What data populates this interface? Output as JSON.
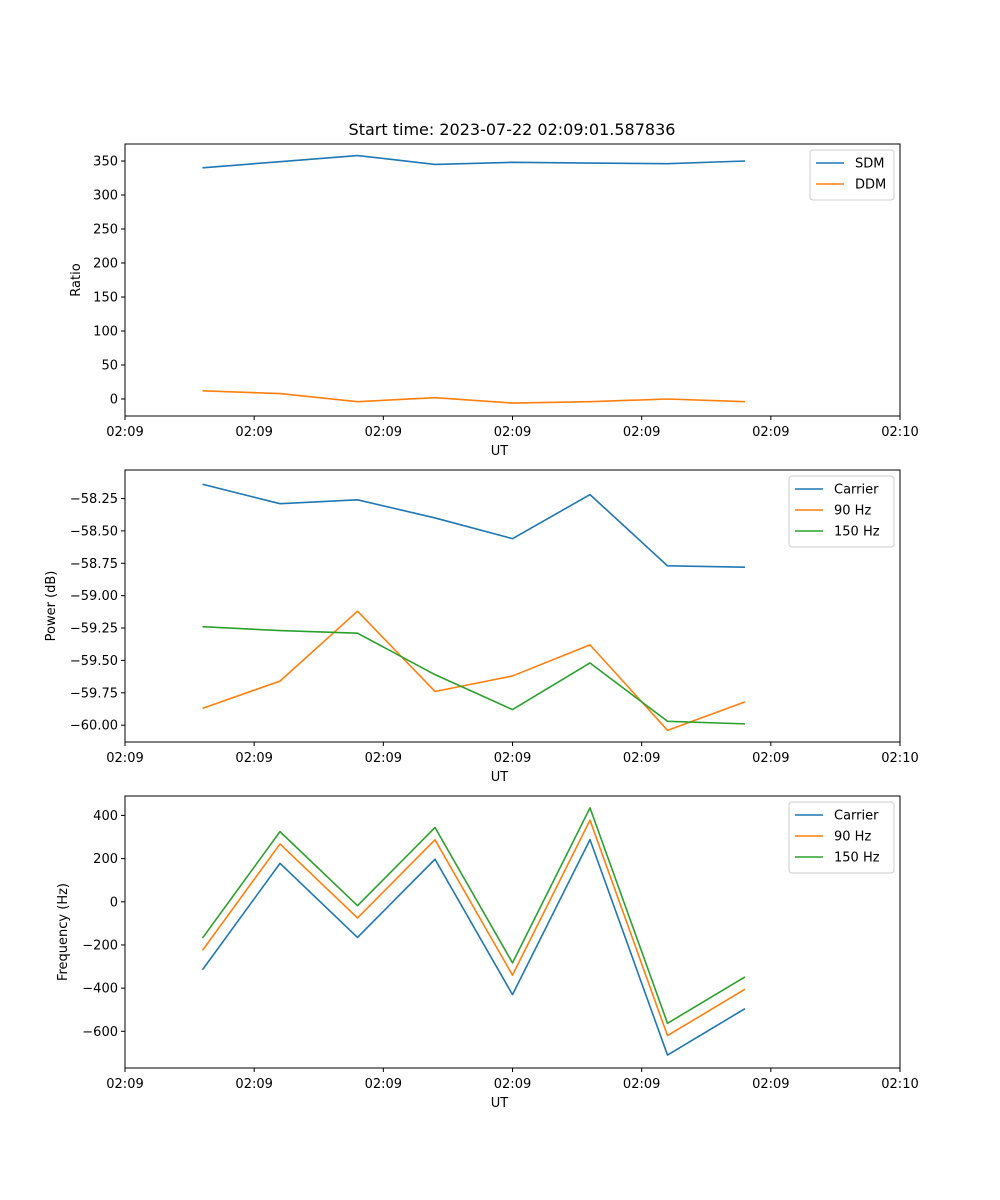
{
  "figure": {
    "title": "Start time: 2023-07-22 02:09:01.587836"
  },
  "colors": {
    "blue": "#1f77b4",
    "orange": "#ff7f0e",
    "green": "#2ca02c"
  },
  "chart_data": [
    {
      "type": "line",
      "title": "Start time: 2023-07-22 02:09:01.587836",
      "xlabel": "UT",
      "ylabel": "Ratio",
      "x": [
        0.6,
        1.2,
        1.8,
        2.4,
        3.0,
        3.6,
        4.2,
        4.8
      ],
      "xlim": [
        0,
        6
      ],
      "xticks": [
        0,
        1,
        2,
        3,
        4,
        5,
        6
      ],
      "xtick_labels": [
        "02:09",
        "02:09",
        "02:09",
        "02:09",
        "02:09",
        "02:09",
        "02:10"
      ],
      "ylim": [
        -25,
        375
      ],
      "yticks": [
        0,
        50,
        100,
        150,
        200,
        250,
        300,
        350
      ],
      "ytick_labels": [
        "0",
        "50",
        "100",
        "150",
        "200",
        "250",
        "300",
        "350"
      ],
      "legend_position": "top-right",
      "series": [
        {
          "name": "SDM",
          "color": "#1f77b4",
          "values": [
            340,
            349,
            358,
            345,
            348,
            347,
            346,
            350
          ]
        },
        {
          "name": "DDM",
          "color": "#ff7f0e",
          "values": [
            12,
            8,
            -4,
            2,
            -6,
            -4,
            0,
            -4
          ]
        }
      ]
    },
    {
      "type": "line",
      "title": "",
      "xlabel": "UT",
      "ylabel": "Power (dB)",
      "x": [
        0.6,
        1.2,
        1.8,
        2.4,
        3.0,
        3.6,
        4.2,
        4.8
      ],
      "xlim": [
        0,
        6
      ],
      "xticks": [
        0,
        1,
        2,
        3,
        4,
        5,
        6
      ],
      "xtick_labels": [
        "02:09",
        "02:09",
        "02:09",
        "02:09",
        "02:09",
        "02:09",
        "02:10"
      ],
      "ylim": [
        -60.13,
        -58.03
      ],
      "yticks": [
        -60.0,
        -59.75,
        -59.5,
        -59.25,
        -59.0,
        -58.75,
        -58.5,
        -58.25
      ],
      "ytick_labels": [
        "−60.00",
        "−59.75",
        "−59.50",
        "−59.25",
        "−59.00",
        "−58.75",
        "−58.50",
        "−58.25"
      ],
      "legend_position": "top-right",
      "series": [
        {
          "name": "Carrier",
          "color": "#1f77b4",
          "values": [
            -58.14,
            -58.29,
            -58.26,
            -58.4,
            -58.56,
            -58.22,
            -58.77,
            -58.78
          ]
        },
        {
          "name": "90 Hz",
          "color": "#ff7f0e",
          "values": [
            -59.87,
            -59.66,
            -59.12,
            -59.74,
            -59.62,
            -59.38,
            -60.04,
            -59.82
          ]
        },
        {
          "name": "150 Hz",
          "color": "#2ca02c",
          "values": [
            -59.24,
            -59.27,
            -59.29,
            -59.61,
            -59.88,
            -59.52,
            -59.97,
            -59.99
          ]
        }
      ]
    },
    {
      "type": "line",
      "title": "",
      "xlabel": "UT",
      "ylabel": "Frequency (Hz)",
      "x": [
        0.6,
        1.2,
        1.8,
        2.4,
        3.0,
        3.6,
        4.2,
        4.8
      ],
      "xlim": [
        0,
        6
      ],
      "xticks": [
        0,
        1,
        2,
        3,
        4,
        5,
        6
      ],
      "xtick_labels": [
        "02:09",
        "02:09",
        "02:09",
        "02:09",
        "02:09",
        "02:09",
        "02:10"
      ],
      "ylim": [
        -770,
        490
      ],
      "yticks": [
        -600,
        -400,
        -200,
        0,
        200,
        400
      ],
      "ytick_labels": [
        "−600",
        "−400",
        "−200",
        "0",
        "200",
        "400"
      ],
      "legend_position": "top-right",
      "series": [
        {
          "name": "Carrier",
          "color": "#1f77b4",
          "values": [
            -315,
            178,
            -165,
            197,
            -430,
            288,
            -710,
            -495
          ]
        },
        {
          "name": "90 Hz",
          "color": "#ff7f0e",
          "values": [
            -225,
            268,
            -75,
            287,
            -340,
            378,
            -620,
            -405
          ]
        },
        {
          "name": "150 Hz",
          "color": "#2ca02c",
          "values": [
            -168,
            325,
            -18,
            344,
            -283,
            435,
            -563,
            -348
          ]
        }
      ]
    }
  ]
}
